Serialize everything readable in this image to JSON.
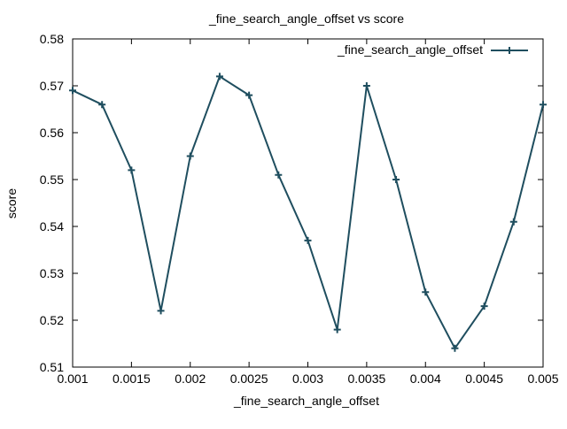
{
  "chart_data": {
    "type": "line",
    "title": "_fine_search_angle_offset vs score",
    "xlabel": "_fine_search_angle_offset",
    "ylabel": "score",
    "xlim": [
      0.001,
      0.005
    ],
    "ylim": [
      0.51,
      0.58
    ],
    "x_ticks": [
      "0.001",
      "0.0015",
      "0.002",
      "0.0025",
      "0.003",
      "0.0035",
      "0.004",
      "0.0045",
      "0.005"
    ],
    "y_ticks": [
      "0.51",
      "0.52",
      "0.53",
      "0.54",
      "0.55",
      "0.56",
      "0.57",
      "0.58"
    ],
    "grid": false,
    "legend_position": "top-right",
    "series": [
      {
        "name": "_fine_search_angle_offset",
        "color": "#1f4e5f",
        "marker": "plus",
        "x": [
          0.001,
          0.00125,
          0.0015,
          0.00175,
          0.002,
          0.00225,
          0.0025,
          0.00275,
          0.003,
          0.00325,
          0.0035,
          0.00375,
          0.004,
          0.00425,
          0.0045,
          0.00475,
          0.005
        ],
        "y": [
          0.569,
          0.566,
          0.552,
          0.522,
          0.555,
          0.572,
          0.568,
          0.551,
          0.537,
          0.518,
          0.57,
          0.55,
          0.526,
          0.514,
          0.523,
          0.541,
          0.566
        ]
      }
    ]
  }
}
